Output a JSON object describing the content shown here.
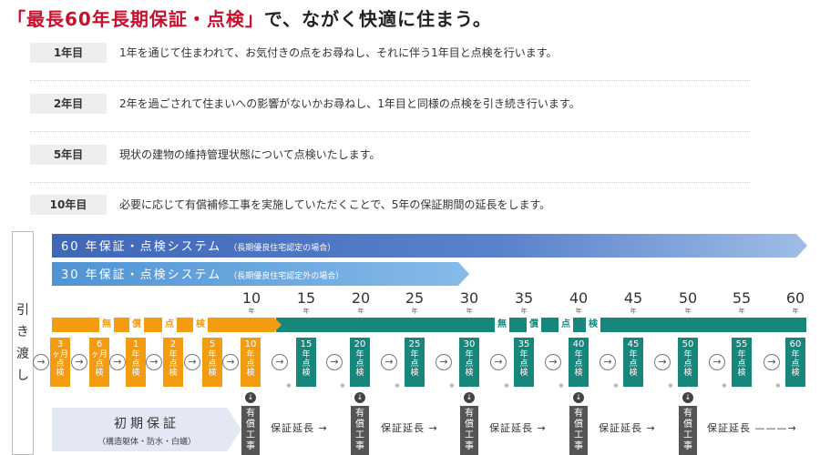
{
  "title": {
    "highlight": "「最長60年長期保証・点検」",
    "rest": "で、ながく快適に住まう。"
  },
  "schedule": [
    {
      "year": "1年目",
      "desc": "1年を通じて住まわれて、お気付きの点をお尋ねし、それに伴う1年目と点検を行います。"
    },
    {
      "year": "2年目",
      "desc": "2年を過ごされて住まいへの影響がないかお尋ねし、1年目と同様の点検を引き続き行います。"
    },
    {
      "year": "5年目",
      "desc": "現状の建物の維持管理状態について点検いたします。"
    },
    {
      "year": "10年目",
      "desc": "必要に応じて有償補修工事を実施していただくことで、5年の保証期間の延長をします。"
    }
  ],
  "handover": [
    "引",
    "き",
    "渡",
    "し"
  ],
  "systems": {
    "s60": {
      "title": "60 年保証・点検システム",
      "note": "（長期優良住宅認定の場合）"
    },
    "s30": {
      "title": "30 年保証・点検システム",
      "note": "（長期優良住宅認定外の場合）"
    }
  },
  "year_labels": [
    "10",
    "15",
    "20",
    "25",
    "30",
    "35",
    "40",
    "45",
    "50",
    "55",
    "60"
  ],
  "year_unit": "年",
  "free_inspection_chars": [
    "無",
    "償",
    "点",
    "検"
  ],
  "timeline": {
    "early": [
      {
        "n": "3",
        "u": "ヶ月",
        "k": [
          "点",
          "検"
        ]
      },
      {
        "n": "6",
        "u": "ヶ月",
        "k": [
          "点",
          "検"
        ]
      },
      {
        "n": "1",
        "u": "年",
        "k": [
          "点",
          "検"
        ]
      },
      {
        "n": "2",
        "u": "年",
        "k": [
          "点",
          "検"
        ]
      },
      {
        "n": "5",
        "u": "年",
        "k": [
          "点",
          "検"
        ]
      },
      {
        "n": "10",
        "u": "年",
        "k": [
          "点",
          "検"
        ]
      }
    ],
    "later": [
      {
        "n": "15",
        "u": "年",
        "k": [
          "点",
          "検"
        ]
      },
      {
        "n": "20",
        "u": "年",
        "k": [
          "点",
          "検"
        ]
      },
      {
        "n": "25",
        "u": "年",
        "k": [
          "点",
          "検"
        ]
      },
      {
        "n": "30",
        "u": "年",
        "k": [
          "点",
          "検"
        ]
      },
      {
        "n": "35",
        "u": "年",
        "k": [
          "点",
          "検"
        ]
      },
      {
        "n": "40",
        "u": "年",
        "k": [
          "点",
          "検"
        ]
      },
      {
        "n": "45",
        "u": "年",
        "k": [
          "点",
          "検"
        ]
      },
      {
        "n": "50",
        "u": "年",
        "k": [
          "点",
          "検"
        ]
      },
      {
        "n": "55",
        "u": "年",
        "k": [
          "点",
          "検"
        ]
      },
      {
        "n": "60",
        "u": "年",
        "k": [
          "点",
          "検"
        ]
      }
    ]
  },
  "circle_glyph": "→",
  "dot_glyph": "※",
  "down_glyph": "↓",
  "paid_work": [
    "有",
    "償",
    "工",
    "事"
  ],
  "initial_warranty": {
    "title": "初期保証",
    "sub": "（構造躯体・防水・白蟻）"
  },
  "extension_labels": [
    "保証延長 →",
    "保証延長 →",
    "保証延長 →",
    "保証延長 →",
    "保証延長 ———→"
  ],
  "colors": {
    "accent_red": "#c8102e",
    "orange": "#f39c12",
    "teal": "#17877c",
    "blue_60": "#3f67b7",
    "blue_30": "#4f93d5",
    "paid_gray": "#555555"
  },
  "icons": {
    "circle_arrow": "circle-arrow-icon",
    "down_arrow": "down-arrow-icon",
    "band_arrow": "arrow-right-icon"
  }
}
